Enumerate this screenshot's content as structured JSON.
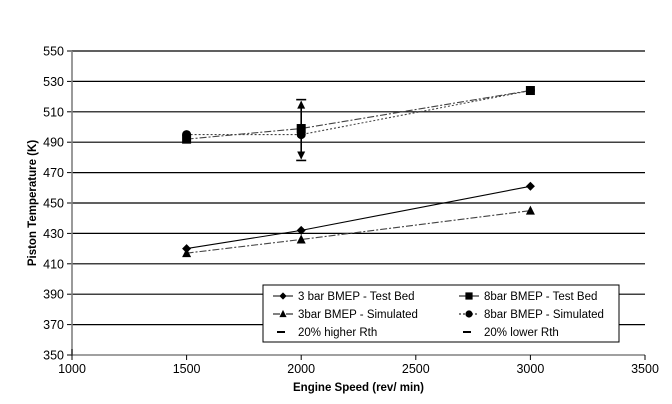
{
  "chart_data": {
    "type": "line",
    "title": "",
    "xlabel": "Engine Speed (rev/ min)",
    "ylabel": "Piston Temperature (K)",
    "xlim": [
      1000,
      3500
    ],
    "ylim": [
      350,
      550
    ],
    "x_ticks": [
      "1000",
      "1500",
      "2000",
      "2500",
      "3000",
      "3500"
    ],
    "y_ticks": [
      "350",
      "370",
      "390",
      "410",
      "430",
      "450",
      "470",
      "490",
      "510",
      "530",
      "550"
    ],
    "grid": "horizontal",
    "legend_position": "bottom-right",
    "series": [
      {
        "name": "3 bar BMEP - Test Bed",
        "marker": "diamond",
        "line": "solid",
        "x": [
          1500,
          2000,
          3000
        ],
        "y": [
          420,
          432,
          461
        ]
      },
      {
        "name": "8bar BMEP - Test Bed",
        "marker": "square",
        "line": "dash-dot",
        "x": [
          1500,
          2000,
          3000
        ],
        "y": [
          492,
          499,
          524
        ]
      },
      {
        "name": "3bar BMEP - Simulated",
        "marker": "triangle",
        "line": "dash-dot",
        "x": [
          1500,
          2000,
          3000
        ],
        "y": [
          417,
          426,
          445
        ]
      },
      {
        "name": "8bar BMEP - Simulated",
        "marker": "circle",
        "line": "dotted",
        "x": [
          1500,
          2000,
          3000
        ],
        "y": [
          495,
          495,
          524
        ]
      },
      {
        "name": "20% higher Rth",
        "marker": "arrow-up",
        "line": "solid",
        "x": [
          2000
        ],
        "y": [
          518
        ]
      },
      {
        "name": "20% lower Rth",
        "marker": "arrow-down",
        "line": "solid",
        "x": [
          2000
        ],
        "y": [
          478
        ]
      }
    ],
    "error_bar": {
      "x": 2000,
      "center": 499,
      "upper": 518,
      "lower": 478
    }
  }
}
